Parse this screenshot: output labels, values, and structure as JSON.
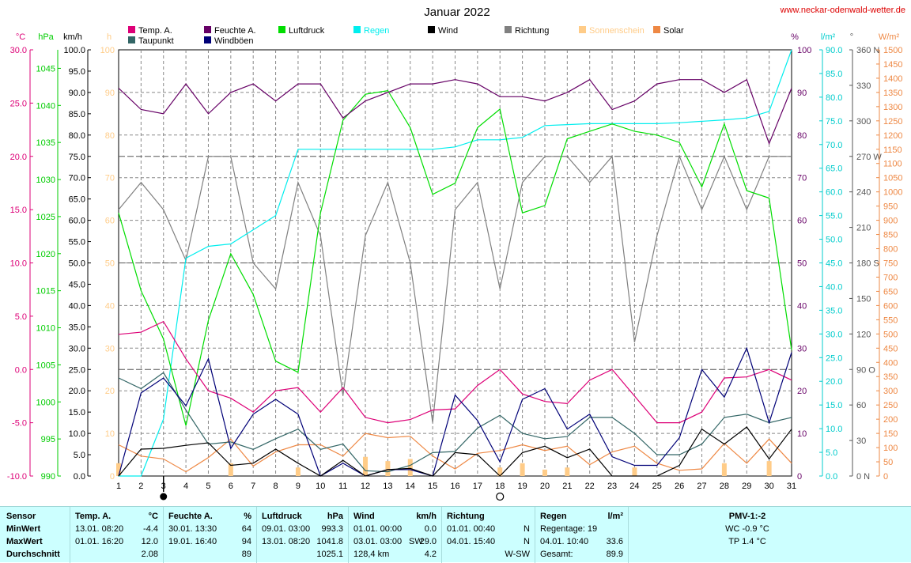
{
  "header": {
    "title": "Januar 2022",
    "site": "www.neckar-odenwald-wetter.de"
  },
  "colors": {
    "temp": "#dd0077",
    "taupunkt": "#336666",
    "feuchte": "#660066",
    "windboen": "#000077",
    "luftdruck": "#00dd00",
    "regen": "#00eeee",
    "wind": "#000000",
    "richtung": "#808080",
    "sonne": "#ffcc88",
    "solar": "#ee8844",
    "site": "#dd0000",
    "panel": "#ccffff"
  },
  "legend": [
    {
      "label": "Temp. A.",
      "color": "#dd0077"
    },
    {
      "label": "Taupunkt",
      "color": "#336666"
    },
    {
      "label": "Feuchte A.",
      "color": "#660066"
    },
    {
      "label": "Windböen",
      "color": "#000077"
    },
    {
      "label": "Luftdruck",
      "color": "#00dd00"
    },
    {
      "label": "Regen",
      "color": "#00eeee"
    },
    {
      "label": "Wind",
      "color": "#000000"
    },
    {
      "label": "Richtung",
      "color": "#808080"
    },
    {
      "label": "Sonnenschein",
      "color": "#ffcc88"
    },
    {
      "label": "Solar",
      "color": "#ee8844"
    }
  ],
  "chart_data": {
    "type": "line",
    "title": "Januar 2022",
    "grid": true,
    "x": [
      1,
      2,
      3,
      4,
      5,
      6,
      7,
      8,
      9,
      10,
      11,
      12,
      13,
      14,
      15,
      16,
      17,
      18,
      19,
      20,
      21,
      22,
      23,
      24,
      25,
      26,
      27,
      28,
      29,
      30,
      31
    ],
    "axes": {
      "temp": {
        "unit": "°C",
        "min": -10,
        "max": 30,
        "ticks": [
          "30.0",
          "25.0",
          "20.0",
          "15.0",
          "10.0",
          "5.0",
          "0.0",
          "-5.0",
          "-10.0"
        ]
      },
      "luftdruck": {
        "unit": "hPa",
        "min": 990,
        "max": 1047.5,
        "ticks": [
          "1045",
          "1040",
          "1035",
          "1030",
          "1025",
          "1020",
          "1015",
          "1010",
          "1005",
          "1000",
          "995",
          "990"
        ]
      },
      "wind": {
        "unit": "km/h",
        "min": 0,
        "max": 100,
        "ticks": [
          "100.0",
          "95.0",
          "90.0",
          "85.0",
          "80.0",
          "75.0",
          "70.0",
          "65.0",
          "60.0",
          "55.0",
          "50.0",
          "45.0",
          "40.0",
          "35.0",
          "30.0",
          "25.0",
          "20.0",
          "15.0",
          "10.0",
          "5.0",
          "0.0"
        ]
      },
      "sonne": {
        "unit": "h",
        "min": 0,
        "max": 100,
        "ticks": [
          "100",
          "90",
          "80",
          "70",
          "60",
          "50",
          "40",
          "30",
          "20",
          "10",
          "0"
        ]
      },
      "feuchte": {
        "unit": "%",
        "min": 0,
        "max": 100,
        "ticks": [
          "100",
          "90",
          "80",
          "70",
          "60",
          "50",
          "40",
          "30",
          "20",
          "10",
          "0"
        ]
      },
      "regen": {
        "unit": "l/m²",
        "min": 0,
        "max": 90,
        "ticks": [
          "90.0",
          "85.0",
          "80.0",
          "75.0",
          "70.0",
          "65.0",
          "60.0",
          "55.0",
          "50.0",
          "45.0",
          "40.0",
          "35.0",
          "30.0",
          "25.0",
          "20.0",
          "15.0",
          "10.0",
          "5.0",
          "0.0"
        ]
      },
      "richtung": {
        "unit": "°",
        "min": 0,
        "max": 360,
        "ticks": [
          "360 N",
          "330",
          "300",
          "270 W",
          "240",
          "210",
          "180 S",
          "150",
          "120",
          "90 O",
          "60",
          "30",
          "0 N"
        ]
      },
      "solar": {
        "unit": "W/m²",
        "min": 0,
        "max": 1500,
        "ticks": [
          "1500",
          "1450",
          "1400",
          "1350",
          "1300",
          "1250",
          "1200",
          "1150",
          "1100",
          "1050",
          "1000",
          "950",
          "900",
          "850",
          "800",
          "750",
          "700",
          "650",
          "600",
          "550",
          "500",
          "450",
          "400",
          "350",
          "300",
          "250",
          "200",
          "150",
          "100",
          "50",
          "0"
        ]
      }
    },
    "series": [
      {
        "name": "Temp. A.",
        "axis": "temp",
        "values": [
          3.3,
          3.5,
          4.5,
          1.0,
          -2.0,
          -2.7,
          -4.0,
          -2.0,
          -1.7,
          -4.0,
          -1.7,
          -4.5,
          -5.0,
          -4.7,
          -3.8,
          -3.7,
          -1.5,
          0.0,
          -2.3,
          -3.0,
          -3.2,
          -1.0,
          0.0,
          -2.5,
          -5.0,
          -5.0,
          -4.0,
          -0.8,
          -0.7,
          0.0,
          -1.0
        ]
      },
      {
        "name": "Taupunkt",
        "axis": "temp",
        "values": [
          -0.8,
          -1.8,
          -0.3,
          -3.8,
          -7.0,
          -6.8,
          -7.5,
          -6.5,
          -5.6,
          -7.5,
          -7.0,
          -9.5,
          -9.6,
          -9.0,
          -7.8,
          -7.7,
          -5.5,
          -4.3,
          -6.0,
          -6.5,
          -6.3,
          -4.5,
          -4.5,
          -6.0,
          -8.0,
          -8.0,
          -7.0,
          -4.5,
          -4.2,
          -5.0,
          -4.5
        ]
      },
      {
        "name": "Feuchte A.",
        "axis": "feuchte",
        "values": [
          91,
          86,
          85,
          92,
          85,
          90,
          92,
          88,
          92,
          92,
          84,
          88,
          90,
          92,
          92,
          93,
          92,
          89,
          89,
          88,
          90,
          93,
          86,
          88,
          92,
          93,
          93,
          90,
          93,
          78,
          91
        ]
      },
      {
        "name": "Luftdruck",
        "axis": "luftdruck",
        "values": [
          1025.5,
          1015.0,
          1008.5,
          996.8,
          1011.0,
          1020.0,
          1014.5,
          1005.5,
          1004.0,
          1025.5,
          1038.0,
          1041.5,
          1042.0,
          1037.0,
          1028.0,
          1029.5,
          1037.0,
          1039.5,
          1025.5,
          1026.5,
          1035.5,
          1036.5,
          1037.5,
          1036.5,
          1036.0,
          1035.0,
          1029.0,
          1037.5,
          1028.5,
          1027.5,
          1007.0
        ]
      },
      {
        "name": "Regen",
        "axis": "regen",
        "values": [
          0.0,
          0.0,
          12.0,
          46.0,
          48.5,
          49.0,
          52.0,
          55.0,
          69.0,
          69.0,
          69.0,
          69.0,
          69.0,
          69.0,
          69.0,
          69.5,
          71.0,
          71.0,
          71.5,
          74.0,
          74.2,
          74.4,
          74.4,
          74.4,
          74.4,
          74.6,
          74.9,
          75.2,
          75.6,
          77.0,
          90.0
        ]
      },
      {
        "name": "Wind",
        "axis": "wind",
        "values": [
          0.0,
          6.3,
          6.5,
          7.2,
          7.8,
          2.5,
          3.0,
          6.3,
          3.0,
          0.0,
          3.7,
          0.0,
          1.5,
          1.8,
          0.0,
          5.5,
          5.0,
          0.0,
          5.5,
          7.0,
          4.3,
          6.3,
          0.0,
          0.0,
          0.0,
          2.5,
          11.0,
          7.5,
          11.5,
          4.0,
          11.0
        ]
      },
      {
        "name": "Windböen",
        "axis": "wind",
        "values": [
          0.0,
          19.5,
          23.0,
          16.5,
          27.5,
          6.5,
          14.5,
          18.0,
          14.5,
          0.0,
          3.0,
          0.0,
          1.5,
          1.5,
          0.0,
          19.0,
          13.0,
          3.3,
          18.0,
          20.5,
          11.0,
          14.5,
          4.5,
          2.5,
          2.5,
          9.0,
          25.0,
          18.5,
          30.0,
          12.5,
          29.0
        ]
      },
      {
        "name": "Richtung",
        "axis": "richtung",
        "values": [
          225,
          248,
          225,
          182,
          270,
          270,
          180,
          158,
          248,
          203,
          68,
          203,
          248,
          180,
          45,
          225,
          248,
          158,
          248,
          270,
          270,
          248,
          270,
          113,
          203,
          270,
          225,
          270,
          225,
          270,
          270
        ]
      },
      {
        "name": "Solar",
        "axis": "solar",
        "values": [
          110,
          70,
          60,
          15,
          65,
          130,
          35,
          85,
          110,
          110,
          70,
          150,
          135,
          140,
          70,
          25,
          80,
          90,
          110,
          90,
          105,
          40,
          85,
          105,
          45,
          20,
          25,
          115,
          45,
          130,
          45
        ]
      },
      {
        "name": "Sonnenschein",
        "axis": "sonne",
        "values": [
          3,
          0,
          0,
          0,
          0,
          3,
          0,
          0,
          2,
          0,
          0,
          4.5,
          3.5,
          4,
          0,
          0,
          0,
          2,
          3,
          1.5,
          2,
          0,
          0,
          2,
          0,
          0,
          0,
          3,
          0,
          3.5,
          0
        ]
      }
    ],
    "moon_markers": [
      {
        "day": 3,
        "phase": "new"
      },
      {
        "day": 18,
        "phase": "full"
      }
    ]
  },
  "panel": {
    "labels": {
      "sensor": "Sensor",
      "min": "MinWert",
      "max": "MaxWert",
      "avg": "Durchschnitt"
    },
    "temp": {
      "title": "Temp. A.",
      "unit": "°C",
      "min_time": "13.01.  08:20",
      "min_val": "-4.4",
      "max_time": "01.01.  16:20",
      "max_val": "12.0",
      "avg": "2.08"
    },
    "feuchte": {
      "title": "Feuchte A.",
      "unit": "%",
      "min_time": "30.01.  13:30",
      "min_val": "64",
      "max_time": "19.01.  16:40",
      "max_val": "94",
      "avg": "89"
    },
    "luftdruck": {
      "title": "Luftdruck",
      "unit": "hPa",
      "min_time": "09.01.  03:00",
      "min_val": "993.3",
      "max_time": "13.01.  08:20",
      "max_val": "1041.8",
      "avg": "1025.1"
    },
    "wind": {
      "title": "Wind",
      "unit": "km/h",
      "min_time": "01.01.  00:00",
      "min_val": "0.0",
      "max_time": "03.01.  03:00",
      "max_dir": "SW",
      "max_val": "29.0",
      "avg_left": "128,4 km",
      "avg": "4.2"
    },
    "richtung": {
      "title": "Richtung",
      "min_time": "01.01.  00:40",
      "min_val": "N",
      "max_time": "04.01.  15:40",
      "max_val": "N",
      "avg": "W-SW"
    },
    "regen": {
      "title": "Regen",
      "unit": "l/m²",
      "row1": "Regentage: 19",
      "max_time": "04.01.  10:40",
      "max_val": "33.6",
      "avg_label": "Gesamt:",
      "avg": "89.9"
    },
    "pmv": {
      "title": "PMV-1:-2",
      "wc": "WC -0.9 °C",
      "tp": "TP 1.4 °C"
    }
  }
}
